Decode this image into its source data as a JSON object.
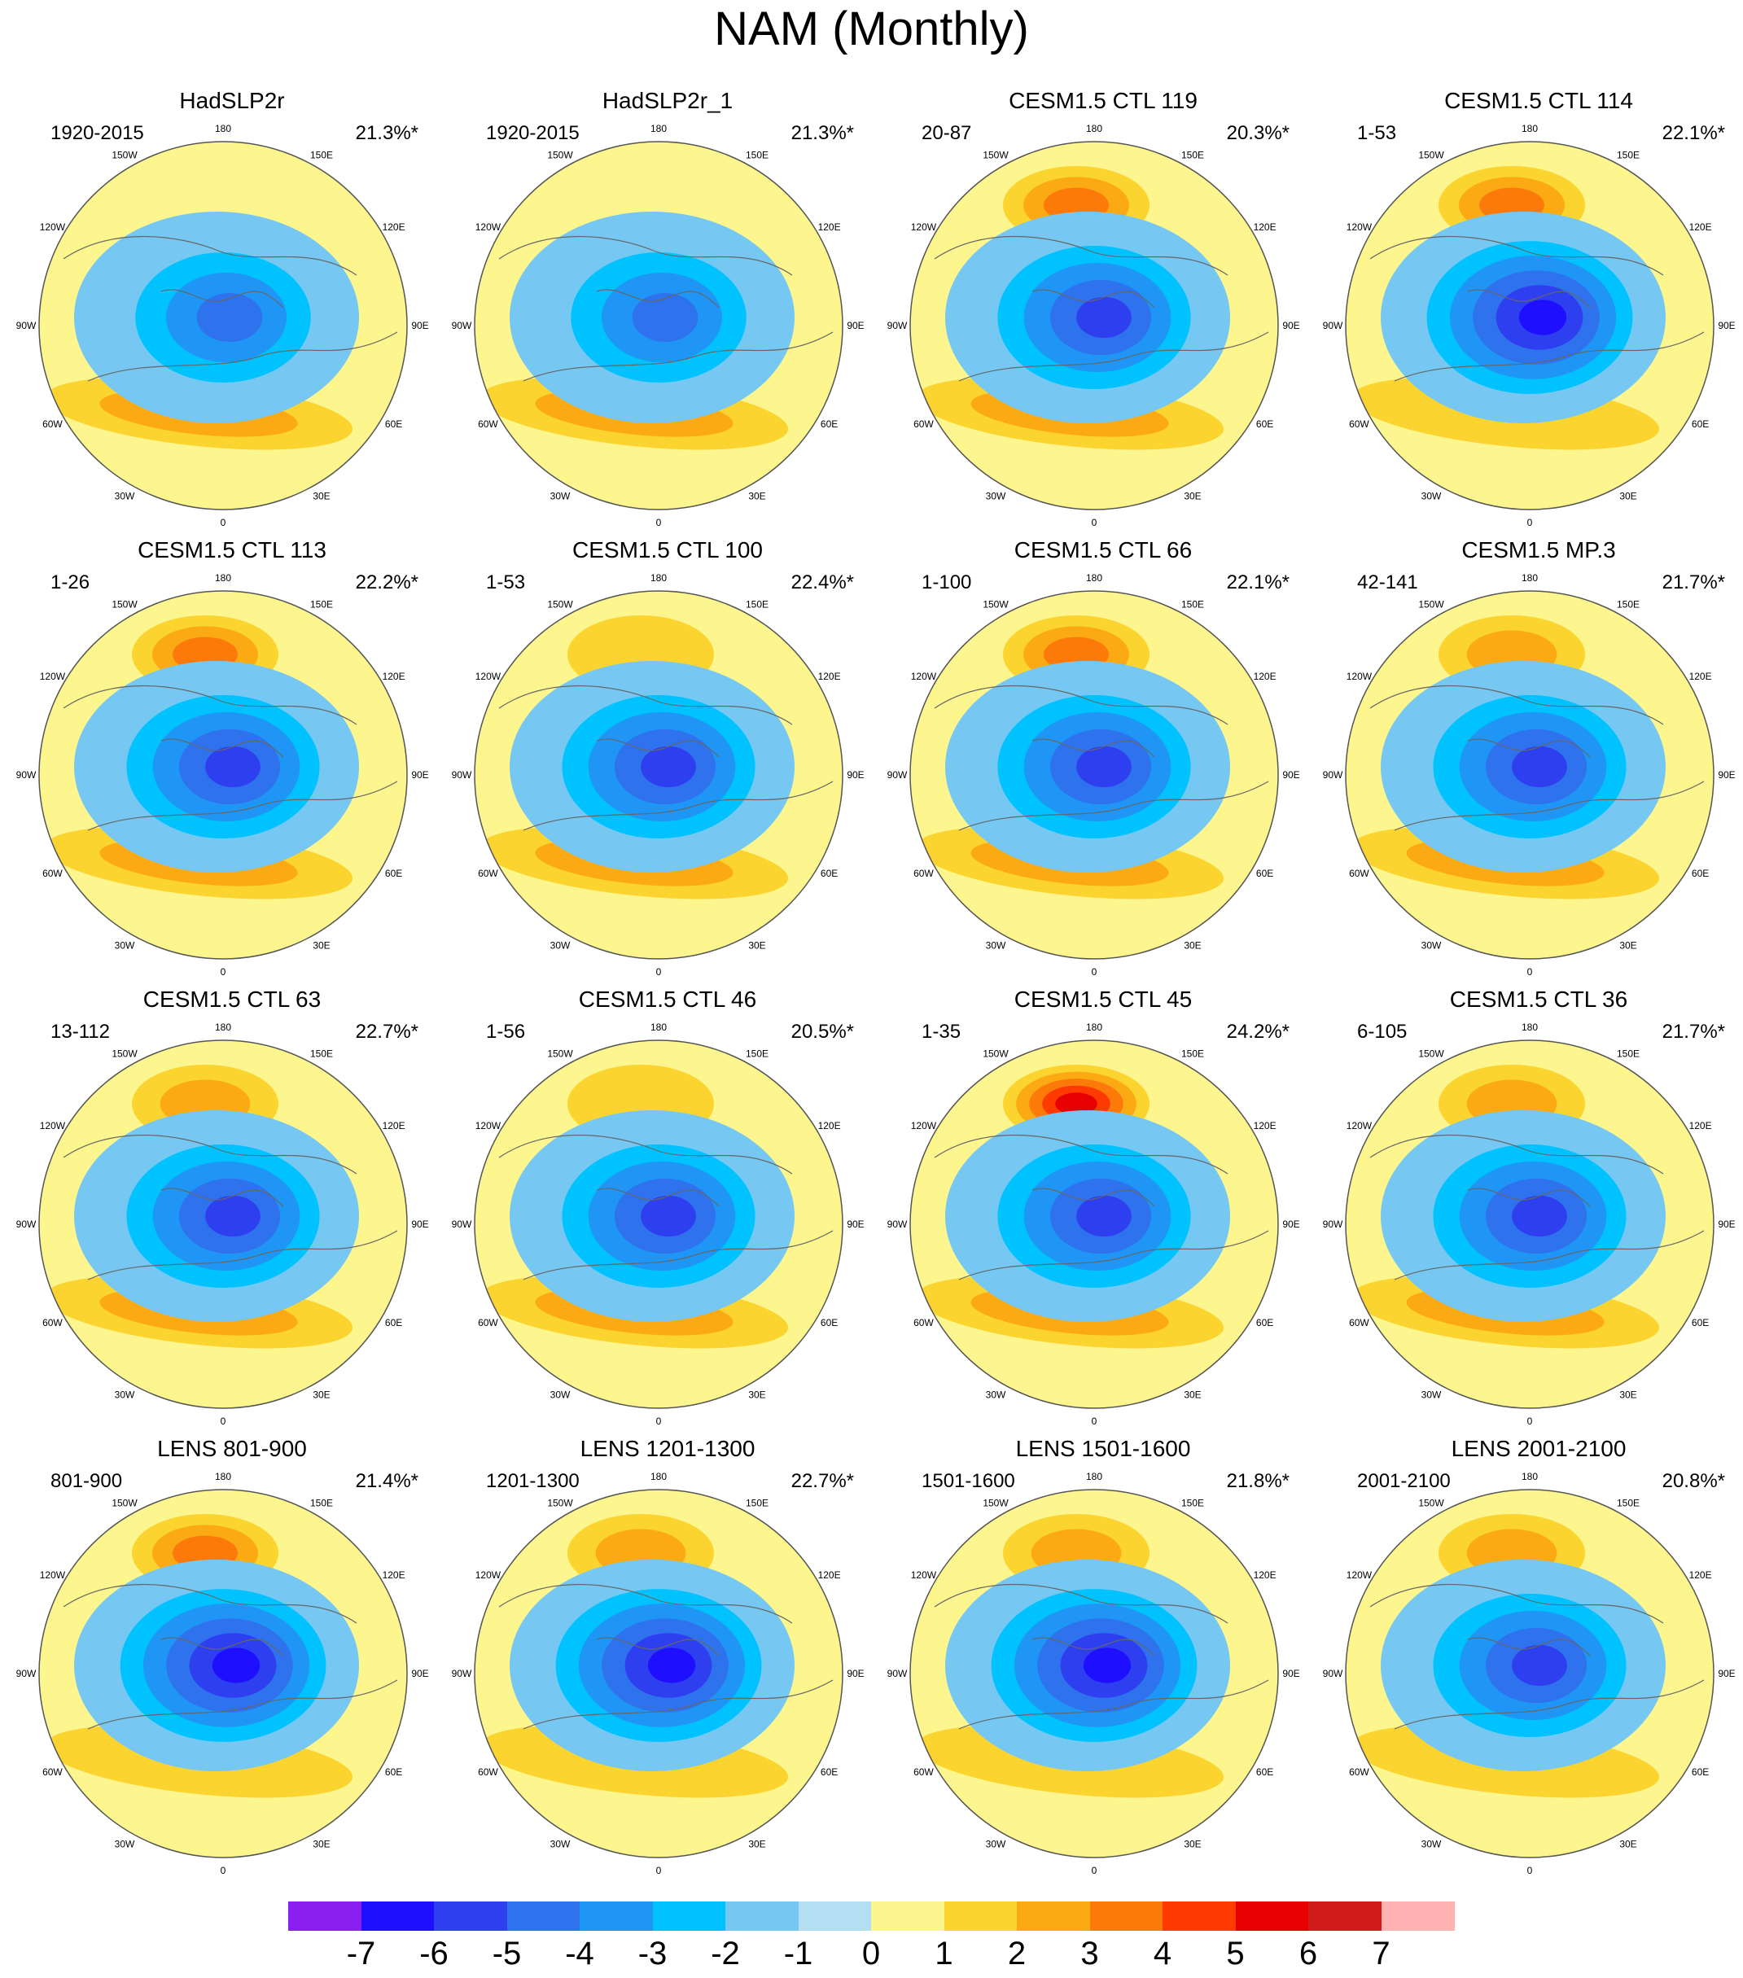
{
  "chart_data": {
    "type": "heatmap",
    "title": "NAM (Monthly)",
    "projection": "north polar stereographic",
    "longitude_labels": [
      "180",
      "150E",
      "120E",
      "90E",
      "60E",
      "30E",
      "0",
      "30W",
      "60W",
      "90W",
      "120W",
      "150W"
    ],
    "colorbar": {
      "labels": [
        "-7",
        "-6",
        "-5",
        "-4",
        "-3",
        "-2",
        "-1",
        "0",
        "1",
        "2",
        "3",
        "4",
        "5",
        "6",
        "7"
      ],
      "colors": [
        "#8a1ff0",
        "#1f0fff",
        "#2e3ff0",
        "#2f72ee",
        "#1f96f5",
        "#00c2ff",
        "#76c8f2",
        "#b4dff2",
        "#fdf68f",
        "#fcd430",
        "#fcaa14",
        "#fc7a0a",
        "#ff3a00",
        "#e60000",
        "#d11b1b",
        "#ffb2b2"
      ]
    },
    "panels": [
      {
        "title": "HadSLP2r",
        "period": "1920-2015",
        "variance": "21.3%*",
        "neg_min": -4,
        "pac_max": 0,
        "atl_max": 2
      },
      {
        "title": "HadSLP2r_1",
        "period": "1920-2015",
        "variance": "21.3%*",
        "neg_min": -4,
        "pac_max": 0,
        "atl_max": 2
      },
      {
        "title": "CESM1.5 CTL 119",
        "period": "20-87",
        "variance": "20.3%*",
        "neg_min": -5,
        "pac_max": 3,
        "atl_max": 2
      },
      {
        "title": "CESM1.5 CTL 114",
        "period": "1-53",
        "variance": "22.1%*",
        "neg_min": -6,
        "pac_max": 3,
        "atl_max": 1
      },
      {
        "title": "CESM1.5 CTL 113",
        "period": "1-26",
        "variance": "22.2%*",
        "neg_min": -5,
        "pac_max": 3,
        "atl_max": 2
      },
      {
        "title": "CESM1.5 CTL 100",
        "period": "1-53",
        "variance": "22.4%*",
        "neg_min": -5,
        "pac_max": 1,
        "atl_max": 2
      },
      {
        "title": "CESM1.5 CTL 66",
        "period": "1-100",
        "variance": "22.1%*",
        "neg_min": -5,
        "pac_max": 3,
        "atl_max": 2
      },
      {
        "title": "CESM1.5 MP.3",
        "period": "42-141",
        "variance": "21.7%*",
        "neg_min": -5,
        "pac_max": 2,
        "atl_max": 2
      },
      {
        "title": "CESM1.5 CTL 63",
        "period": "13-112",
        "variance": "22.7%*",
        "neg_min": -5,
        "pac_max": 2,
        "atl_max": 2
      },
      {
        "title": "CESM1.5 CTL 46",
        "period": "1-56",
        "variance": "20.5%*",
        "neg_min": -5,
        "pac_max": 1,
        "atl_max": 2
      },
      {
        "title": "CESM1.5 CTL 45",
        "period": "1-35",
        "variance": "24.2%*",
        "neg_min": -5,
        "pac_max": 5,
        "atl_max": 2
      },
      {
        "title": "CESM1.5 CTL 36",
        "period": "6-105",
        "variance": "21.7%*",
        "neg_min": -5,
        "pac_max": 2,
        "atl_max": 2
      },
      {
        "title": "LENS 801-900",
        "period": "801-900",
        "variance": "21.4%*",
        "neg_min": -6,
        "pac_max": 3,
        "atl_max": 1
      },
      {
        "title": "LENS 1201-1300",
        "period": "1201-1300",
        "variance": "22.7%*",
        "neg_min": -6,
        "pac_max": 2,
        "atl_max": 1
      },
      {
        "title": "LENS 1501-1600",
        "period": "1501-1600",
        "variance": "21.8%*",
        "neg_min": -6,
        "pac_max": 2,
        "atl_max": 1
      },
      {
        "title": "LENS 2001-2100",
        "period": "2001-2100",
        "variance": "20.8%*",
        "neg_min": -5,
        "pac_max": 2,
        "atl_max": 1
      }
    ]
  }
}
